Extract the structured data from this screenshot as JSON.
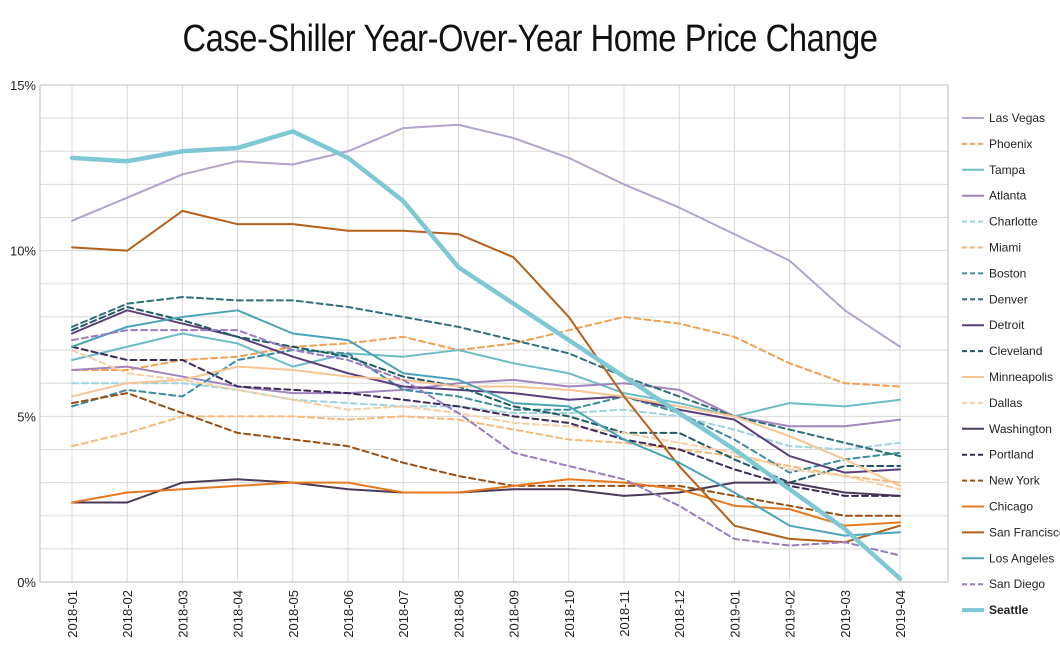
{
  "chart_data": {
    "type": "line",
    "title": "Case-Shiller Year-Over-Year Home Price Change",
    "xlabel": "",
    "ylabel": "",
    "ylim": [
      0,
      15
    ],
    "y_ticks": [
      {
        "value": 0,
        "label": "0%"
      },
      {
        "value": 5,
        "label": "5%"
      },
      {
        "value": 10,
        "label": "10%"
      },
      {
        "value": 15,
        "label": "15%"
      }
    ],
    "grid": "on",
    "legend_position": "right",
    "categories": [
      "2018-01",
      "2018-02",
      "2018-03",
      "2018-04",
      "2018-05",
      "2018-06",
      "2018-07",
      "2018-08",
      "2018-09",
      "2018-10",
      "2018-11",
      "2018-12",
      "2019-01",
      "2019-02",
      "2019-03",
      "2019-04"
    ],
    "series": [
      {
        "name": "Las Vegas",
        "color": "#b3a2cc",
        "dash": "solid",
        "width": 2,
        "values": [
          10.9,
          11.6,
          12.3,
          12.7,
          12.6,
          13.0,
          13.7,
          13.8,
          13.4,
          12.8,
          12.0,
          11.3,
          10.5,
          9.7,
          8.2,
          7.1
        ]
      },
      {
        "name": "Phoenix",
        "color": "#f0a050",
        "dash": "dashed",
        "width": 2,
        "values": [
          6.4,
          6.4,
          6.7,
          6.8,
          7.1,
          7.2,
          7.4,
          7.0,
          7.2,
          7.6,
          8.0,
          7.8,
          7.4,
          6.6,
          6.0,
          5.9
        ]
      },
      {
        "name": "Tampa",
        "color": "#6bbcc6",
        "dash": "solid",
        "width": 2,
        "values": [
          6.7,
          7.1,
          7.5,
          7.2,
          6.5,
          6.9,
          6.8,
          7.0,
          6.6,
          6.3,
          5.7,
          5.4,
          5.0,
          5.4,
          5.3,
          5.5
        ]
      },
      {
        "name": "Atlanta",
        "color": "#a285be",
        "dash": "solid",
        "width": 2,
        "values": [
          6.4,
          6.5,
          6.2,
          5.9,
          5.7,
          5.7,
          5.8,
          6.0,
          6.1,
          5.9,
          6.0,
          5.8,
          5.0,
          4.7,
          4.7,
          4.9
        ]
      },
      {
        "name": "Charlotte",
        "color": "#9ed4de",
        "dash": "dashed",
        "width": 2,
        "values": [
          6.0,
          6.0,
          6.0,
          5.8,
          5.5,
          5.4,
          5.3,
          5.3,
          5.1,
          5.1,
          5.2,
          5.0,
          4.6,
          4.1,
          4.0,
          4.2
        ]
      },
      {
        "name": "Miami",
        "color": "#f5b97c",
        "dash": "dashed",
        "width": 2,
        "values": [
          4.1,
          4.5,
          5.0,
          5.0,
          5.0,
          4.9,
          5.0,
          4.9,
          4.6,
          4.3,
          4.2,
          4.0,
          3.8,
          3.5,
          3.2,
          3.0
        ]
      },
      {
        "name": "Boston",
        "color": "#3d8ca0",
        "dash": "dashed",
        "width": 2,
        "values": [
          5.3,
          5.8,
          5.6,
          6.7,
          7.0,
          6.9,
          5.8,
          5.6,
          5.2,
          5.2,
          5.6,
          5.1,
          4.3,
          3.3,
          3.7,
          3.9
        ]
      },
      {
        "name": "Denver",
        "color": "#2e6f7a",
        "dash": "dashed",
        "width": 2,
        "values": [
          7.7,
          8.4,
          8.6,
          8.5,
          8.5,
          8.3,
          8.0,
          7.7,
          7.3,
          6.9,
          6.2,
          5.6,
          5.0,
          4.6,
          4.2,
          3.8
        ]
      },
      {
        "name": "Detroit",
        "color": "#5a3f7a",
        "dash": "solid",
        "width": 2,
        "values": [
          7.5,
          8.2,
          7.8,
          7.4,
          6.8,
          6.3,
          5.9,
          5.8,
          5.7,
          5.5,
          5.6,
          5.2,
          4.9,
          3.8,
          3.3,
          3.4
        ]
      },
      {
        "name": "Cleveland",
        "color": "#1e5a63",
        "dash": "dashed",
        "width": 2,
        "values": [
          7.6,
          8.3,
          7.9,
          7.4,
          7.1,
          6.8,
          6.2,
          5.9,
          5.3,
          5.0,
          4.5,
          4.5,
          3.7,
          3.0,
          3.5,
          3.5
        ]
      },
      {
        "name": "Minneapolis",
        "color": "#f7c592",
        "dash": "solid",
        "width": 2,
        "values": [
          5.6,
          6.0,
          6.1,
          6.5,
          6.4,
          6.2,
          6.1,
          5.9,
          5.9,
          5.8,
          5.6,
          5.3,
          5.0,
          4.4,
          3.7,
          2.9
        ]
      },
      {
        "name": "Dallas",
        "color": "#f8cfa5",
        "dash": "dashed",
        "width": 2,
        "values": [
          7.0,
          6.3,
          6.1,
          5.8,
          5.5,
          5.2,
          5.3,
          5.1,
          4.8,
          4.7,
          4.5,
          4.2,
          3.9,
          3.4,
          3.2,
          2.8
        ]
      },
      {
        "name": "Washington",
        "color": "#4a3a5a",
        "dash": "solid",
        "width": 2,
        "values": [
          2.4,
          2.4,
          3.0,
          3.1,
          3.0,
          2.8,
          2.7,
          2.7,
          2.8,
          2.8,
          2.6,
          2.7,
          3.0,
          3.0,
          2.7,
          2.6
        ]
      },
      {
        "name": "Portland",
        "color": "#3c2a58",
        "dash": "dashed",
        "width": 2,
        "values": [
          7.1,
          6.7,
          6.7,
          5.9,
          5.8,
          5.7,
          5.5,
          5.3,
          5.0,
          4.8,
          4.3,
          4.0,
          3.4,
          2.9,
          2.6,
          2.6
        ]
      },
      {
        "name": "New York",
        "color": "#9a4e12",
        "dash": "dashed",
        "width": 2,
        "values": [
          5.4,
          5.7,
          5.1,
          4.5,
          4.3,
          4.1,
          3.6,
          3.2,
          2.9,
          2.9,
          2.9,
          2.9,
          2.6,
          2.3,
          2.0,
          2.0
        ]
      },
      {
        "name": "Chicago",
        "color": "#e8781e",
        "dash": "solid",
        "width": 2,
        "values": [
          2.4,
          2.7,
          2.8,
          2.9,
          3.0,
          3.0,
          2.7,
          2.7,
          2.9,
          3.1,
          3.0,
          2.8,
          2.3,
          2.2,
          1.7,
          1.8
        ]
      },
      {
        "name": "San Francisco",
        "color": "#b5601a",
        "dash": "solid",
        "width": 2,
        "values": [
          10.1,
          10.0,
          11.2,
          10.8,
          10.8,
          10.6,
          10.6,
          10.5,
          9.8,
          8.0,
          5.6,
          3.5,
          1.7,
          1.3,
          1.2,
          1.7
        ]
      },
      {
        "name": "Los Angeles",
        "color": "#4aa4b8",
        "dash": "solid",
        "width": 2,
        "values": [
          7.1,
          7.7,
          8.0,
          8.2,
          7.5,
          7.3,
          6.3,
          6.1,
          5.4,
          5.3,
          4.3,
          3.6,
          2.7,
          1.7,
          1.4,
          1.5
        ]
      },
      {
        "name": "San Diego",
        "color": "#9a7cc0",
        "dash": "dashed",
        "width": 2,
        "values": [
          7.3,
          7.6,
          7.6,
          7.6,
          7.0,
          6.7,
          6.1,
          5.1,
          3.9,
          3.5,
          3.1,
          2.3,
          1.3,
          1.1,
          1.2,
          0.8
        ]
      },
      {
        "name": "Seattle",
        "color": "#7ec7d4",
        "dash": "solid",
        "width": 4.5,
        "bold": true,
        "values": [
          12.8,
          12.7,
          13.0,
          13.1,
          13.6,
          12.8,
          11.5,
          9.5,
          8.4,
          7.3,
          6.2,
          5.1,
          4.0,
          2.8,
          1.6,
          0.1
        ]
      }
    ]
  }
}
